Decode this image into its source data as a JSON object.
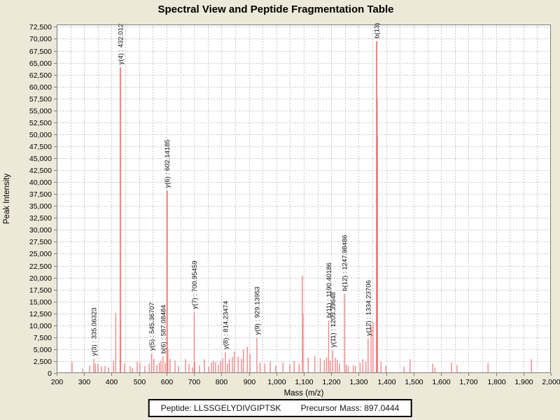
{
  "title": "Spectral View and Peptide Fragmentation Table",
  "footer": {
    "peptide_text": "Peptide: LLSSGELYDIVGIPTSK",
    "precursor_text": "Precursor Mass: 897.0444"
  },
  "chart_data": {
    "type": "bar",
    "title": "Spectral View and Peptide Fragmentation Table",
    "xlabel": "Mass (m/z)",
    "ylabel": "Peak Intensity",
    "xlim": [
      200,
      2000
    ],
    "ylim": [
      0,
      73000
    ],
    "x_tick_interval": 100,
    "y_tick_interval": 2500,
    "x_grid_interval": 50,
    "grid": true,
    "legend": "none",
    "bar_color": "#ee7b7b",
    "plot_background": "#ffffff",
    "page_background": "#ece9d8",
    "grid_color": "#c9c9c9",
    "axis_color": "#7f7f7f",
    "labeled_peaks": [
      {
        "label": "y(3) : 335.06323",
        "mz": 335.06,
        "intensity": 3000
      },
      {
        "label": "y(4) : 432.012",
        "mz": 432.01,
        "intensity": 64000
      },
      {
        "label": "y(5) : 545.36707",
        "mz": 545.37,
        "intensity": 4100
      },
      {
        "label": "b(6) : 587.08484",
        "mz": 587.08,
        "intensity": 3500
      },
      {
        "label": "y(6) : 602.14185",
        "mz": 602.14,
        "intensity": 38200
      },
      {
        "label": "y(7) : 700.95459",
        "mz": 700.95,
        "intensity": 12800
      },
      {
        "label": "y(8) : 814.23474",
        "mz": 814.23,
        "intensity": 4400
      },
      {
        "label": "y(9) : 929.13953",
        "mz": 929.14,
        "intensity": 7400
      },
      {
        "label": "b(11) : 1190.40186",
        "mz": 1190.4,
        "intensity": 11000
      },
      {
        "label": "y(11) : 1205.39648",
        "mz": 1205.4,
        "intensity": 4800
      },
      {
        "label": "b(12) : 1247.98486",
        "mz": 1247.98,
        "intensity": 16600
      },
      {
        "label": "y(12) : 1334.23706",
        "mz": 1334.24,
        "intensity": 7200
      },
      {
        "label": "b(13)",
        "mz": 1365.5,
        "intensity": 69500
      }
    ],
    "peaks": [
      [
        256,
        2400
      ],
      [
        295,
        900
      ],
      [
        320,
        1600
      ],
      [
        341,
        2000
      ],
      [
        350,
        1900
      ],
      [
        363,
        1400
      ],
      [
        376,
        1500
      ],
      [
        389,
        1200
      ],
      [
        407,
        2600
      ],
      [
        415,
        12600
      ],
      [
        433,
        11200
      ],
      [
        447,
        2000
      ],
      [
        468,
        1400
      ],
      [
        476,
        1100
      ],
      [
        493,
        2400
      ],
      [
        503,
        2200
      ],
      [
        521,
        1500
      ],
      [
        537,
        2000
      ],
      [
        554,
        3000
      ],
      [
        565,
        1800
      ],
      [
        574,
        2200
      ],
      [
        580,
        2600
      ],
      [
        595,
        2200
      ],
      [
        605,
        5000
      ],
      [
        613,
        3000
      ],
      [
        631,
        2600
      ],
      [
        644,
        1500
      ],
      [
        669,
        2950
      ],
      [
        682,
        1900
      ],
      [
        695,
        1200
      ],
      [
        703,
        2300
      ],
      [
        720,
        1600
      ],
      [
        738,
        2900
      ],
      [
        754,
        1300
      ],
      [
        764,
        2200
      ],
      [
        771,
        2600
      ],
      [
        779,
        2300
      ],
      [
        789,
        1800
      ],
      [
        797,
        2500
      ],
      [
        805,
        3100
      ],
      [
        822,
        2000
      ],
      [
        829,
        3000
      ],
      [
        840,
        3400
      ],
      [
        847,
        4500
      ],
      [
        861,
        3500
      ],
      [
        873,
        3000
      ],
      [
        880,
        4900
      ],
      [
        894,
        5500
      ],
      [
        904,
        4000
      ],
      [
        941,
        2200
      ],
      [
        958,
        2000
      ],
      [
        978,
        2500
      ],
      [
        998,
        1600
      ],
      [
        1024,
        2200
      ],
      [
        1049,
        1800
      ],
      [
        1065,
        2500
      ],
      [
        1083,
        2000
      ],
      [
        1095,
        20400
      ],
      [
        1097,
        12400
      ],
      [
        1116,
        3300
      ],
      [
        1140,
        3600
      ],
      [
        1160,
        3100
      ],
      [
        1175,
        2700
      ],
      [
        1183,
        3300
      ],
      [
        1196,
        2600
      ],
      [
        1215,
        3200
      ],
      [
        1222,
        2800
      ],
      [
        1230,
        2000
      ],
      [
        1255,
        1800
      ],
      [
        1262,
        1500
      ],
      [
        1280,
        1600
      ],
      [
        1288,
        1450
      ],
      [
        1305,
        2200
      ],
      [
        1315,
        2900
      ],
      [
        1326,
        2400
      ],
      [
        1345,
        9900
      ],
      [
        1352,
        10600
      ],
      [
        1366.5,
        57500
      ],
      [
        1367.5,
        49500
      ],
      [
        1381,
        2400
      ],
      [
        1399,
        1500
      ],
      [
        1465,
        1300
      ],
      [
        1487,
        2900
      ],
      [
        1569,
        2000
      ],
      [
        1577,
        1200
      ],
      [
        1638,
        2200
      ],
      [
        1658,
        1700
      ],
      [
        1771,
        2100
      ],
      [
        1929,
        2950
      ]
    ]
  }
}
